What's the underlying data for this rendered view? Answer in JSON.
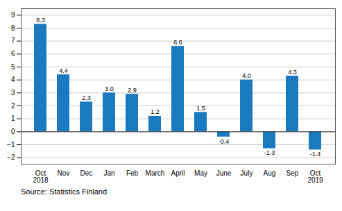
{
  "chart_data": {
    "type": "bar",
    "categories": [
      "Oct\n2018",
      "Nov",
      "Dec",
      "Jan",
      "Feb",
      "March",
      "April",
      "May",
      "June",
      "July",
      "Aug",
      "Sep",
      "Oct\n2019"
    ],
    "values": [
      8.3,
      4.4,
      2.3,
      3.0,
      2.9,
      1.2,
      6.6,
      1.5,
      -0.4,
      4.0,
      -1.3,
      4.3,
      -1.4
    ],
    "value_labels": [
      "8.3",
      "4.4",
      "2.3",
      "3.0",
      "2.9",
      "1.2",
      "6.6",
      "1.5",
      "-0.4",
      "4.0",
      "-1.3",
      "4.3",
      "-1.4"
    ],
    "data_labels": true,
    "color": "#1a7abf",
    "ylim": [
      -2.5,
      9.5
    ],
    "yticks": [
      -2,
      -1,
      0,
      1,
      2,
      3,
      4,
      5,
      6,
      7,
      8,
      9
    ],
    "grid": true,
    "annotations": [
      "Source: Statistics Finland"
    ]
  }
}
